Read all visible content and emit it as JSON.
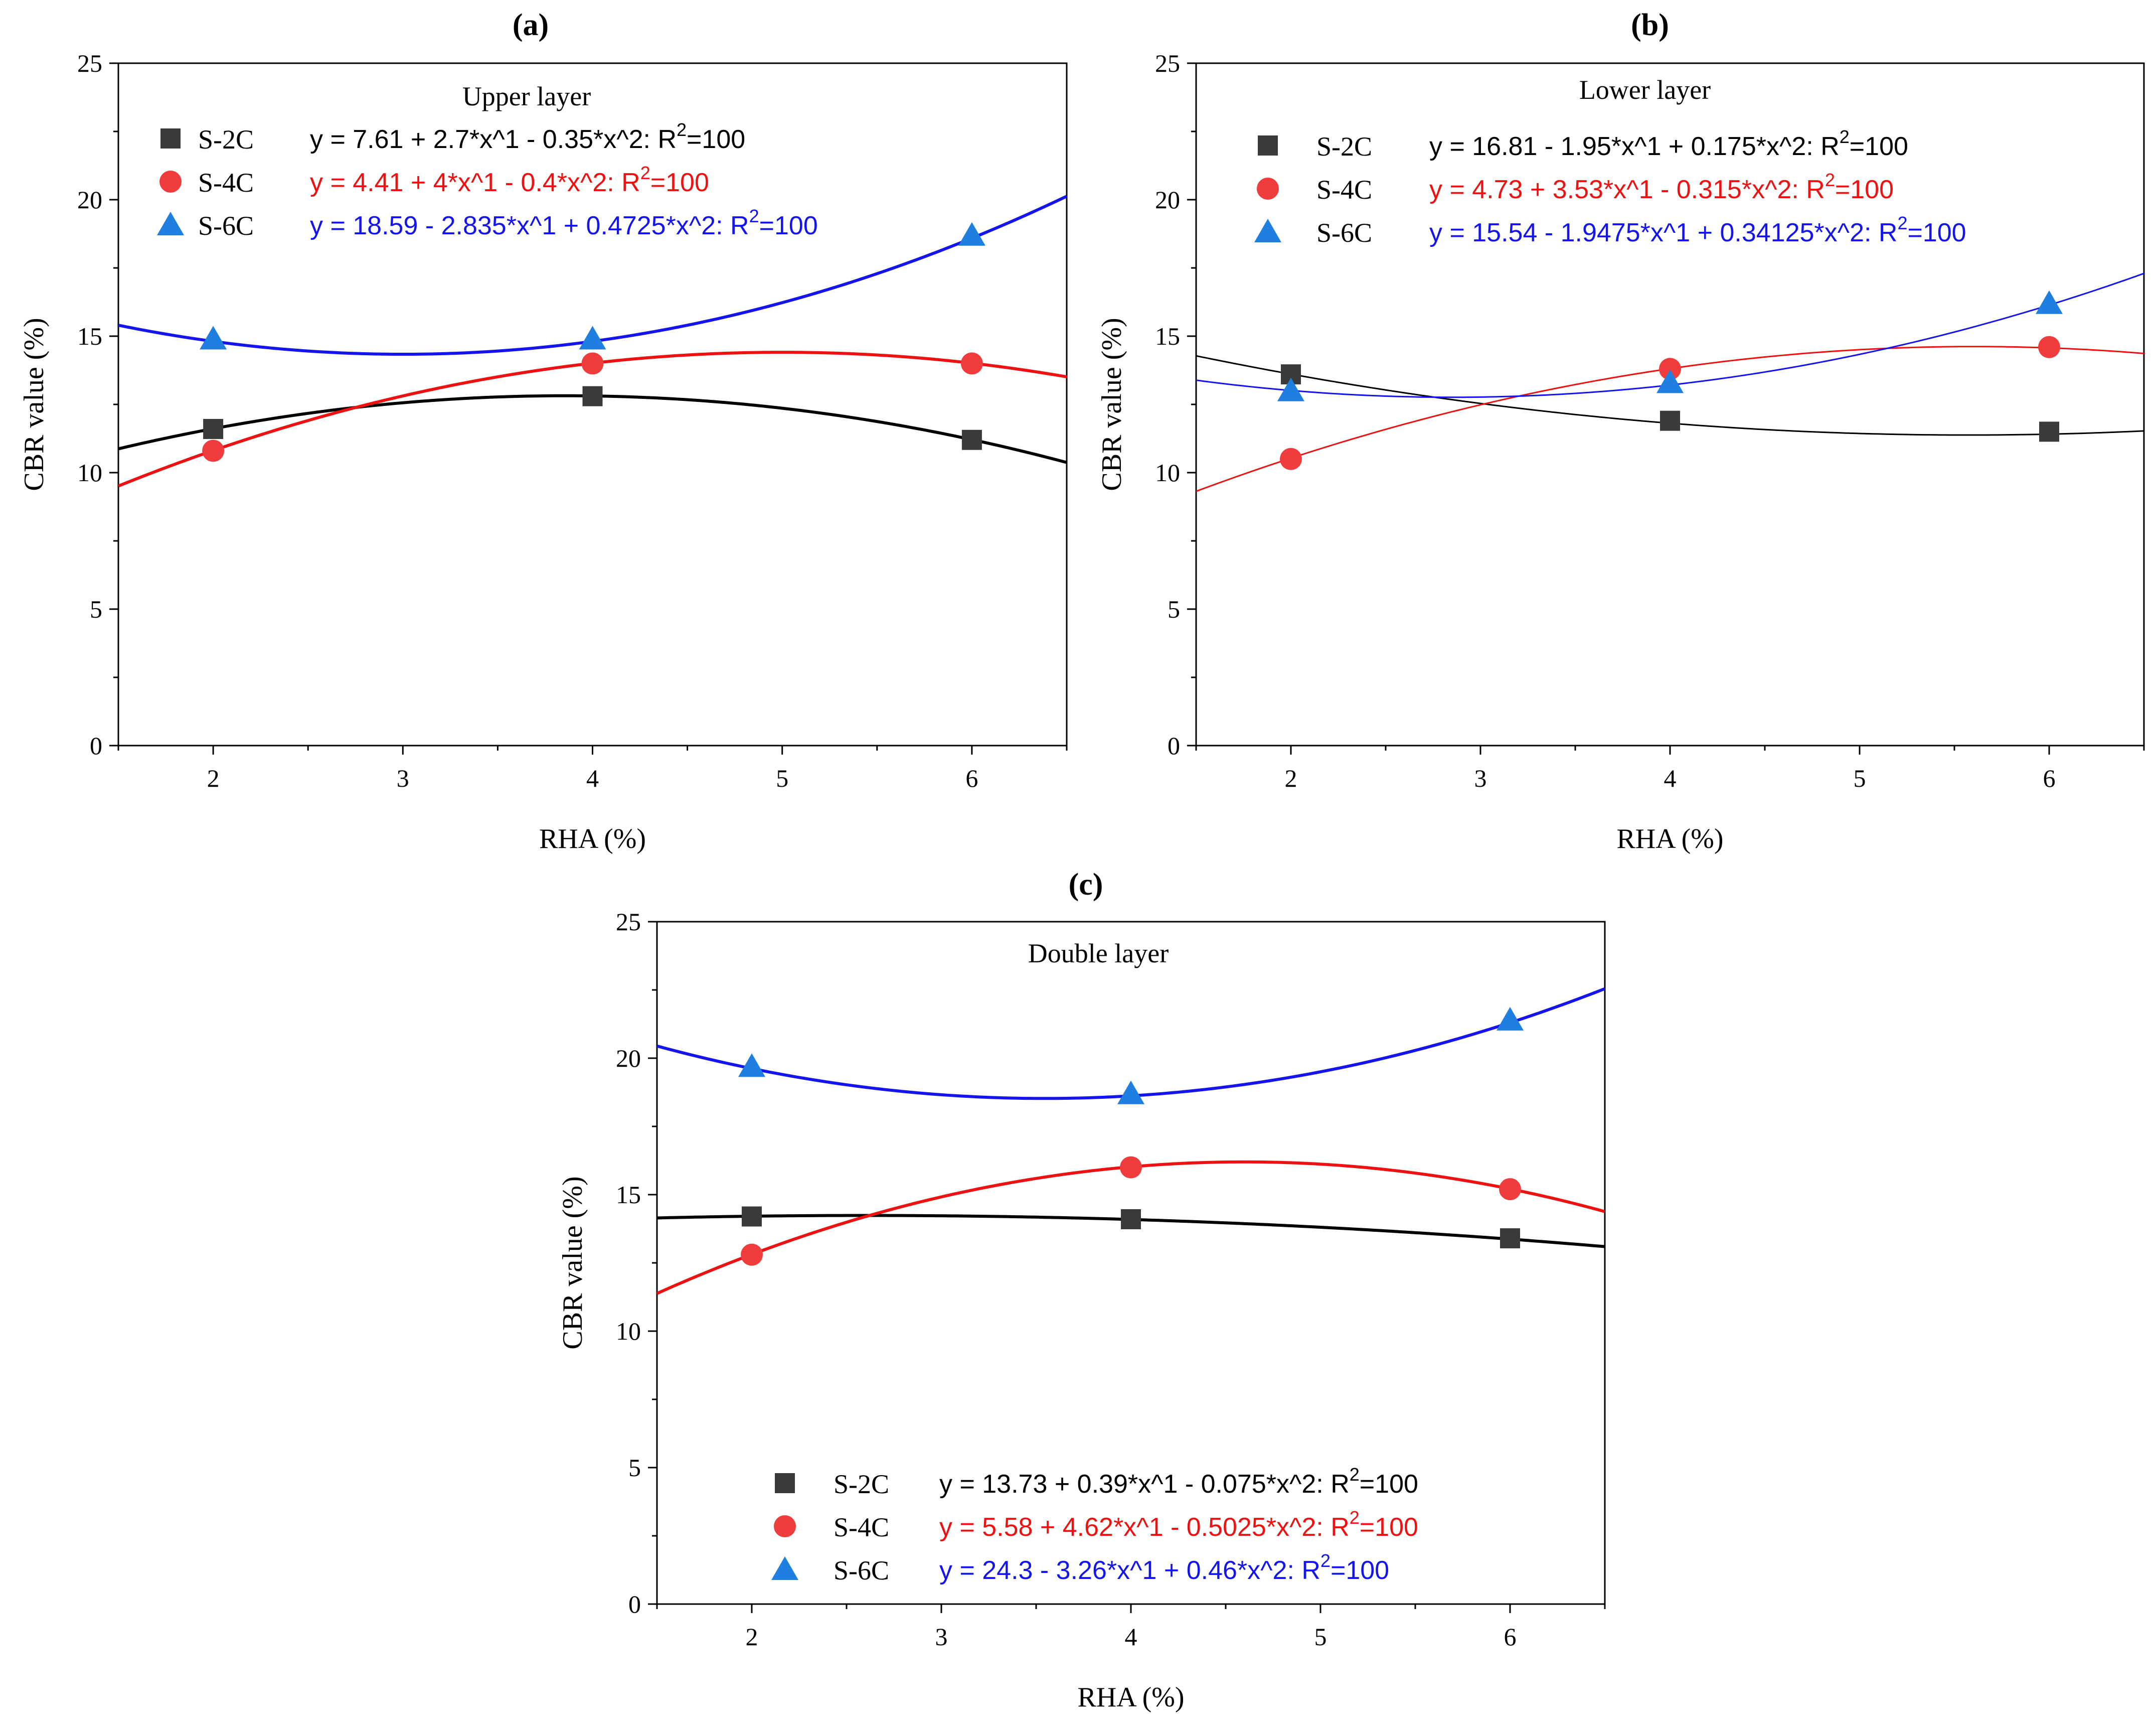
{
  "chart_data": [
    {
      "type": "scatter",
      "panel_label": "(a)",
      "title": "Upper layer",
      "xlabel": "RHA (%)",
      "ylabel": "CBR value (%)",
      "xlim": [
        1.5,
        6.5
      ],
      "ylim": [
        0,
        25
      ],
      "xticks": [
        2,
        3,
        4,
        5,
        6
      ],
      "yticks": [
        0,
        5,
        10,
        15,
        20,
        25
      ],
      "legend_position": "top-left",
      "series": [
        {
          "name": "S-2C",
          "marker": "square",
          "color": "#3a3a3a",
          "line_color": "#000000",
          "x": [
            2,
            4,
            6
          ],
          "y": [
            11.6,
            12.8,
            11.2
          ],
          "fit": [
            7.61,
            2.7,
            -0.35
          ],
          "equation": "y = 7.61 + 2.7*x^1 - 0.35*x^2: R",
          "r2": "=100"
        },
        {
          "name": "S-4C",
          "marker": "circle",
          "color": "#f03c3c",
          "line_color": "#ee1111",
          "x": [
            2,
            4,
            6
          ],
          "y": [
            10.8,
            14.0,
            14.0
          ],
          "fit": [
            4.41,
            4,
            -0.4
          ],
          "equation": "y = 4.41 + 4*x^1 - 0.4*x^2: R",
          "r2": "=100"
        },
        {
          "name": "S-6C",
          "marker": "triangle",
          "color": "#1e7fe0",
          "line_color": "#1414ee",
          "x": [
            2,
            4,
            6
          ],
          "y": [
            14.9,
            14.9,
            18.7
          ],
          "fit": [
            18.59,
            -2.835,
            0.4725
          ],
          "equation": "y = 18.59 - 2.835*x^1 + 0.4725*x^2: R",
          "r2": "=100"
        }
      ]
    },
    {
      "type": "scatter",
      "panel_label": "(b)",
      "title": "Lower layer",
      "xlabel": "RHA (%)",
      "ylabel": "CBR value (%)",
      "xlim": [
        1.5,
        6.5
      ],
      "ylim": [
        0,
        25
      ],
      "xticks": [
        2,
        3,
        4,
        5,
        6
      ],
      "yticks": [
        0,
        5,
        10,
        15,
        20,
        25
      ],
      "legend_position": "top-left",
      "series": [
        {
          "name": "S-2C",
          "marker": "square",
          "color": "#3a3a3a",
          "line_color": "#000000",
          "x": [
            2,
            4,
            6
          ],
          "y": [
            13.6,
            11.9,
            11.5
          ],
          "fit": [
            16.81,
            -1.95,
            0.175
          ],
          "equation": "y = 16.81 - 1.95*x^1 + 0.175*x^2: R",
          "r2": "=100"
        },
        {
          "name": "S-4C",
          "marker": "circle",
          "color": "#f03c3c",
          "line_color": "#ee1111",
          "x": [
            2,
            4,
            6
          ],
          "y": [
            10.5,
            13.8,
            14.6
          ],
          "fit": [
            4.73,
            3.53,
            -0.315
          ],
          "equation": "y = 4.73 + 3.53*x^1 - 0.315*x^2: R",
          "r2": "=100"
        },
        {
          "name": "S-6C",
          "marker": "triangle",
          "color": "#1e7fe0",
          "line_color": "#1414ee",
          "x": [
            2,
            4,
            6
          ],
          "y": [
            13.0,
            13.3,
            16.2
          ],
          "fit": [
            15.54,
            -1.9475,
            0.34125
          ],
          "equation": "y = 15.54 - 1.9475*x^1 + 0.34125*x^2: R",
          "r2": "=100"
        }
      ]
    },
    {
      "type": "scatter",
      "panel_label": "(c)",
      "title": "Double layer",
      "xlabel": "RHA (%)",
      "ylabel": "CBR value (%)",
      "xlim": [
        1.5,
        6.5
      ],
      "ylim": [
        0,
        25
      ],
      "xticks": [
        2,
        3,
        4,
        5,
        6
      ],
      "yticks": [
        0,
        5,
        10,
        15,
        20,
        25
      ],
      "legend_position": "bottom-center",
      "series": [
        {
          "name": "S-2C",
          "marker": "square",
          "color": "#3a3a3a",
          "line_color": "#000000",
          "x": [
            2,
            4,
            6
          ],
          "y": [
            14.2,
            14.1,
            13.4
          ],
          "fit": [
            13.73,
            0.39,
            -0.075
          ],
          "equation": "y = 13.73 + 0.39*x^1 - 0.075*x^2: R",
          "r2": "=100"
        },
        {
          "name": "S-4C",
          "marker": "circle",
          "color": "#f03c3c",
          "line_color": "#ee1111",
          "x": [
            2,
            4,
            6
          ],
          "y": [
            12.8,
            16.0,
            15.2
          ],
          "fit": [
            5.58,
            4.62,
            -0.5025
          ],
          "equation": "y = 5.58 + 4.62*x^1 - 0.5025*x^2: R",
          "r2": "=100"
        },
        {
          "name": "S-6C",
          "marker": "triangle",
          "color": "#1e7fe0",
          "line_color": "#1414ee",
          "x": [
            2,
            4,
            6
          ],
          "y": [
            19.7,
            18.7,
            21.4
          ],
          "fit": [
            24.3,
            -3.26,
            0.46
          ],
          "equation": "y = 24.3 - 3.26*x^1 + 0.46*x^2: R",
          "r2": "=100"
        }
      ]
    }
  ]
}
